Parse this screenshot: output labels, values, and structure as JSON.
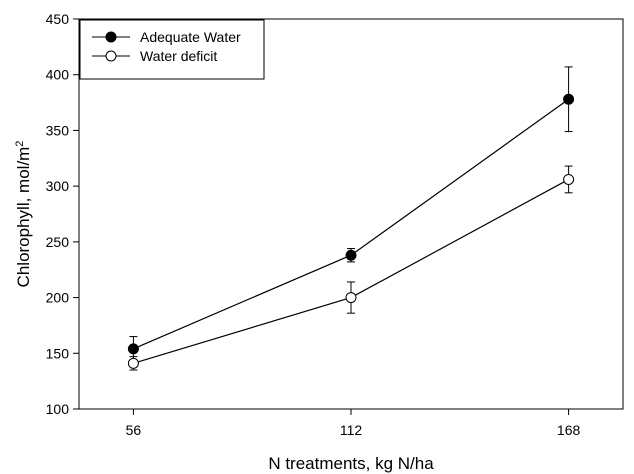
{
  "chart_data": {
    "type": "line",
    "title": "",
    "xlabel": "N treatments,  kg N/ha",
    "ylabel": "Chlorophyll,  mol/m",
    "ylabel_superscript": "2",
    "categories": [
      "56",
      "112",
      "168"
    ],
    "x": [
      56,
      112,
      168
    ],
    "xlim": [
      42,
      182
    ],
    "ylim": [
      100,
      450
    ],
    "yticks": [
      100,
      150,
      200,
      250,
      300,
      350,
      400,
      450
    ],
    "grid": false,
    "legend_position": "top-left",
    "series": [
      {
        "name": "Adequate Water",
        "marker": "filled-circle",
        "color": "#000000",
        "values": [
          154,
          238,
          378
        ],
        "errors": [
          11,
          6,
          29
        ]
      },
      {
        "name": "Water deficit",
        "marker": "open-circle",
        "color": "#000000",
        "values": [
          141,
          200,
          306
        ],
        "errors": [
          6,
          14,
          12
        ]
      }
    ]
  }
}
